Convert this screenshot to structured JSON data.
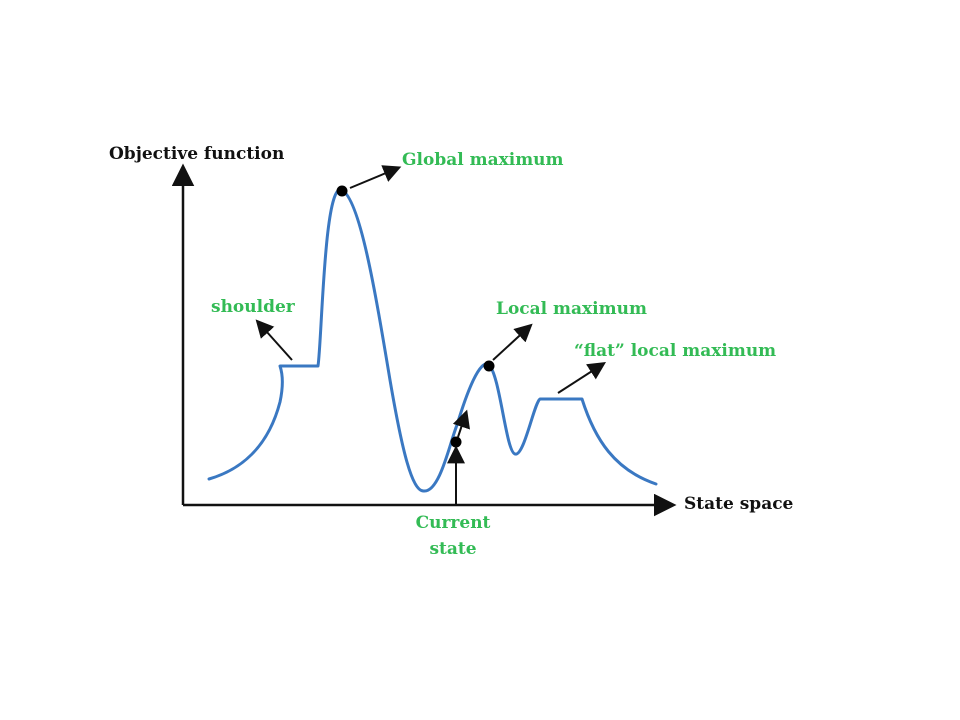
{
  "axes": {
    "y_label": "Objective function",
    "x_label": "State space"
  },
  "annotations": {
    "global_maximum": "Global maximum",
    "shoulder": "shoulder",
    "local_maximum": "Local maximum",
    "flat_local_maximum": "“flat” local maximum",
    "current_state_line1": "Current",
    "current_state_line2": "state"
  },
  "colors": {
    "curve": "#3a78c2",
    "annotation_text": "#33bb55",
    "axis": "#111111"
  }
}
